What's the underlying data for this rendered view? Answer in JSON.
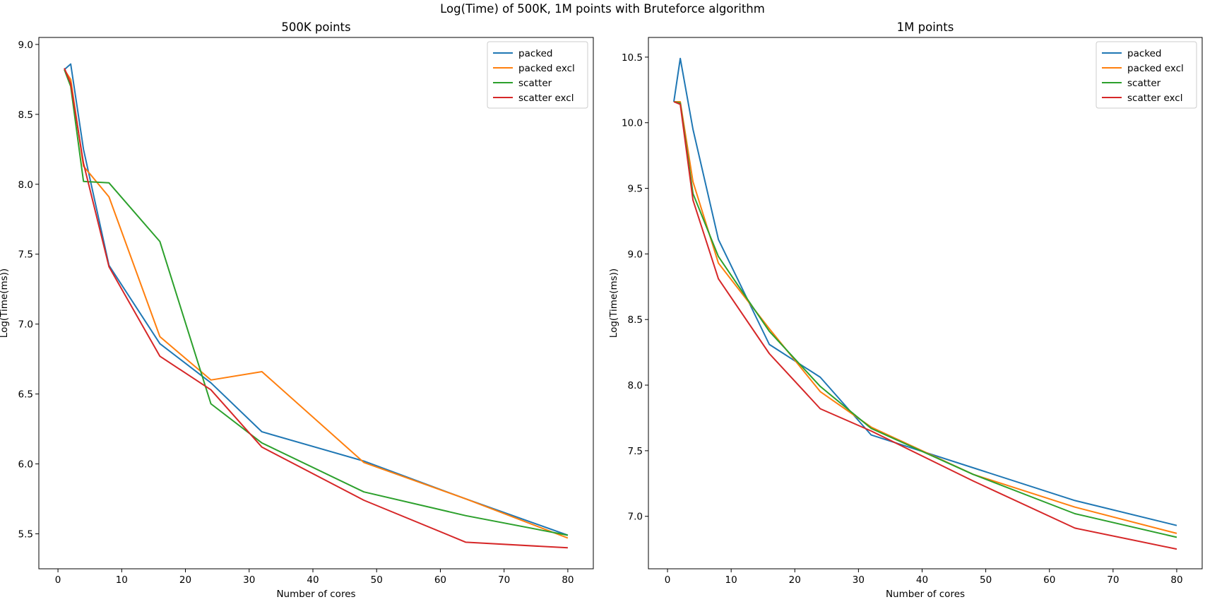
{
  "suptitle": "Log(Time) of 500K, 1M points with Bruteforce algorithm",
  "series_colors": {
    "packed": "#1f77b4",
    "packed excl": "#ff7f0e",
    "scatter": "#2ca02c",
    "scatter excl": "#d62728"
  },
  "chart_data": [
    {
      "type": "line",
      "title": "500K points",
      "xlabel": "Number of cores",
      "ylabel": "Log(Time(ms))",
      "xlim": [
        -3,
        84
      ],
      "ylim": [
        5.25,
        9.05
      ],
      "xticks": [
        0,
        10,
        20,
        30,
        40,
        50,
        60,
        70,
        80
      ],
      "yticks": [
        5.5,
        6.0,
        6.5,
        7.0,
        7.5,
        8.0,
        8.5,
        9.0
      ],
      "grid": false,
      "legend": "top-right",
      "x": [
        1,
        2,
        4,
        8,
        16,
        24,
        32,
        48,
        64,
        80
      ],
      "series": [
        {
          "name": "packed",
          "values": [
            8.82,
            8.86,
            8.25,
            7.42,
            6.86,
            6.58,
            6.23,
            6.02,
            5.75,
            5.49
          ]
        },
        {
          "name": "packed excl",
          "values": [
            8.82,
            8.75,
            8.13,
            7.91,
            6.91,
            6.6,
            6.66,
            6.01,
            5.75,
            5.47
          ]
        },
        {
          "name": "scatter",
          "values": [
            8.82,
            8.7,
            8.02,
            8.01,
            7.59,
            6.43,
            6.15,
            5.8,
            5.63,
            5.49
          ]
        },
        {
          "name": "scatter excl",
          "values": [
            8.83,
            8.72,
            8.15,
            7.41,
            6.77,
            6.53,
            6.12,
            5.74,
            5.44,
            5.4
          ]
        }
      ]
    },
    {
      "type": "line",
      "title": "1M points",
      "xlabel": "Number of cores",
      "ylabel": "Log(Time(ms))",
      "xlim": [
        -3,
        84
      ],
      "ylim": [
        6.6,
        10.65
      ],
      "xticks": [
        0,
        10,
        20,
        30,
        40,
        50,
        60,
        70,
        80
      ],
      "yticks": [
        7.0,
        7.5,
        8.0,
        8.5,
        9.0,
        9.5,
        10.0,
        10.5
      ],
      "grid": false,
      "legend": "top-right",
      "x": [
        1,
        2,
        4,
        8,
        16,
        24,
        32,
        48,
        64,
        80
      ],
      "series": [
        {
          "name": "packed",
          "values": [
            10.16,
            10.49,
            9.95,
            9.11,
            8.31,
            8.06,
            7.62,
            7.37,
            7.12,
            6.93
          ]
        },
        {
          "name": "packed excl",
          "values": [
            10.16,
            10.16,
            9.55,
            8.93,
            8.43,
            7.95,
            7.68,
            7.32,
            7.07,
            6.87
          ]
        },
        {
          "name": "scatter",
          "values": [
            10.16,
            10.15,
            9.46,
            8.98,
            8.41,
            7.99,
            7.67,
            7.32,
            7.02,
            6.84
          ]
        },
        {
          "name": "scatter excl",
          "values": [
            10.16,
            10.14,
            9.41,
            8.81,
            8.24,
            7.82,
            7.65,
            7.27,
            6.91,
            6.75
          ]
        }
      ]
    }
  ]
}
